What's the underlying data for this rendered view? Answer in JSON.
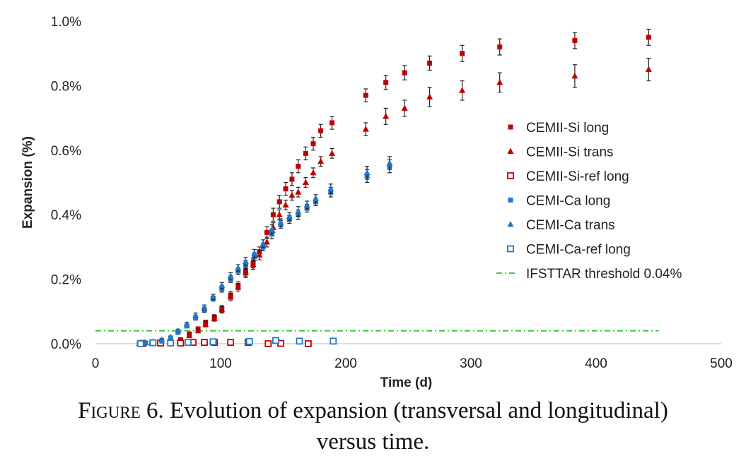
{
  "chart_data": {
    "type": "scatter",
    "xlabel": "Time (d)",
    "ylabel": "Expansion (%)",
    "xlim": [
      0,
      500
    ],
    "ylim": [
      0,
      1.0
    ],
    "x_ticks": [
      "0",
      "100",
      "200",
      "300",
      "400",
      "500"
    ],
    "y_ticks": [
      "0.0%",
      "0.2%",
      "0.4%",
      "0.6%",
      "0.8%",
      "1.0%"
    ],
    "grid": false,
    "legend_position": "right",
    "series": [
      {
        "name": "CEMII-Si long",
        "marker": "square-filled",
        "color": "#c00000",
        "x": [
          38,
          45,
          52,
          60,
          68,
          75,
          82,
          88,
          95,
          101,
          108,
          114,
          120,
          126,
          131,
          137,
          142,
          147,
          152,
          157,
          162,
          168,
          174,
          180,
          189,
          216,
          232,
          247,
          267,
          293,
          323,
          383,
          442
        ],
        "y": [
          0.0,
          0.002,
          0.003,
          0.006,
          0.012,
          0.03,
          0.046,
          0.065,
          0.082,
          0.108,
          0.15,
          0.18,
          0.225,
          0.25,
          0.285,
          0.345,
          0.4,
          0.44,
          0.48,
          0.51,
          0.55,
          0.59,
          0.62,
          0.66,
          0.685,
          0.77,
          0.81,
          0.84,
          0.87,
          0.9,
          0.92,
          0.94,
          0.95
        ],
        "err": [
          0.003,
          0.003,
          0.003,
          0.004,
          0.004,
          0.006,
          0.006,
          0.008,
          0.008,
          0.01,
          0.012,
          0.012,
          0.015,
          0.015,
          0.015,
          0.018,
          0.02,
          0.02,
          0.02,
          0.02,
          0.02,
          0.02,
          0.02,
          0.02,
          0.02,
          0.02,
          0.022,
          0.022,
          0.022,
          0.025,
          0.025,
          0.025,
          0.025
        ]
      },
      {
        "name": "CEMII-Si trans",
        "marker": "triangle-filled",
        "color": "#c00000",
        "x": [
          38,
          45,
          52,
          60,
          68,
          75,
          82,
          88,
          95,
          101,
          108,
          114,
          120,
          126,
          131,
          137,
          142,
          147,
          152,
          157,
          162,
          168,
          174,
          180,
          189,
          216,
          232,
          247,
          267,
          293,
          323,
          383,
          442
        ],
        "y": [
          0.0,
          0.002,
          0.003,
          0.005,
          0.01,
          0.025,
          0.04,
          0.06,
          0.078,
          0.105,
          0.145,
          0.175,
          0.22,
          0.245,
          0.275,
          0.315,
          0.36,
          0.4,
          0.43,
          0.46,
          0.47,
          0.5,
          0.53,
          0.565,
          0.59,
          0.665,
          0.705,
          0.73,
          0.765,
          0.785,
          0.81,
          0.83,
          0.85
        ],
        "err": [
          0.003,
          0.003,
          0.003,
          0.004,
          0.004,
          0.006,
          0.006,
          0.008,
          0.008,
          0.01,
          0.012,
          0.012,
          0.015,
          0.015,
          0.015,
          0.015,
          0.015,
          0.015,
          0.015,
          0.015,
          0.015,
          0.015,
          0.015,
          0.015,
          0.015,
          0.02,
          0.025,
          0.025,
          0.03,
          0.03,
          0.03,
          0.035,
          0.035
        ]
      },
      {
        "name": "CEMII-Si-ref long",
        "marker": "square-open",
        "color": "#c00000",
        "x": [
          38,
          52,
          68,
          78,
          87,
          95,
          108,
          122,
          138,
          148,
          170
        ],
        "y": [
          0.001,
          0.002,
          0.002,
          0.004,
          0.004,
          0.004,
          0.004,
          0.004,
          0.0,
          0.001,
          0.0
        ],
        "err": [
          0,
          0,
          0,
          0,
          0,
          0,
          0,
          0,
          0,
          0,
          0
        ]
      },
      {
        "name": "CEMI-Ca long",
        "marker": "square-filled",
        "color": "#1f78c8",
        "x": [
          35,
          40,
          46,
          53,
          60,
          66,
          73,
          80,
          87,
          94,
          101,
          108,
          114,
          120,
          127,
          134,
          141,
          148,
          155,
          162,
          169,
          176,
          188,
          217,
          235
        ],
        "y": [
          0.0,
          0.002,
          0.004,
          0.008,
          0.015,
          0.035,
          0.055,
          0.08,
          0.105,
          0.14,
          0.17,
          0.2,
          0.225,
          0.245,
          0.27,
          0.3,
          0.34,
          0.37,
          0.385,
          0.4,
          0.42,
          0.44,
          0.47,
          0.52,
          0.55
        ],
        "err": [
          0.003,
          0.003,
          0.003,
          0.004,
          0.004,
          0.005,
          0.006,
          0.007,
          0.008,
          0.008,
          0.01,
          0.01,
          0.01,
          0.012,
          0.012,
          0.012,
          0.015,
          0.012,
          0.012,
          0.015,
          0.012,
          0.012,
          0.015,
          0.02,
          0.02
        ]
      },
      {
        "name": "CEMI-Ca trans",
        "marker": "triangle-filled",
        "color": "#1f78c8",
        "x": [
          35,
          40,
          46,
          53,
          60,
          66,
          73,
          80,
          87,
          94,
          101,
          108,
          114,
          120,
          127,
          134,
          141,
          148,
          155,
          162,
          169,
          176,
          188,
          217,
          235
        ],
        "y": [
          0.001,
          0.003,
          0.006,
          0.012,
          0.02,
          0.04,
          0.06,
          0.088,
          0.112,
          0.145,
          0.18,
          0.21,
          0.235,
          0.255,
          0.28,
          0.31,
          0.355,
          0.375,
          0.395,
          0.41,
          0.43,
          0.45,
          0.48,
          0.53,
          0.56
        ],
        "err": [
          0.003,
          0.003,
          0.003,
          0.004,
          0.004,
          0.005,
          0.006,
          0.007,
          0.008,
          0.008,
          0.01,
          0.01,
          0.01,
          0.012,
          0.012,
          0.012,
          0.015,
          0.012,
          0.012,
          0.015,
          0.012,
          0.012,
          0.015,
          0.02,
          0.02
        ]
      },
      {
        "name": "CEMI-Ca-ref long",
        "marker": "square-open",
        "color": "#1f78c8",
        "x": [
          36,
          46,
          60,
          74,
          94,
          123,
          144,
          163,
          190
        ],
        "y": [
          0.0,
          0.003,
          0.002,
          0.004,
          0.006,
          0.007,
          0.01,
          0.008,
          0.008
        ],
        "err": [
          0,
          0,
          0,
          0,
          0,
          0,
          0,
          0,
          0
        ]
      },
      {
        "name": "IFSTTAR threshold 0.04%",
        "marker": "line-dashdot",
        "color": "#2fbf2f",
        "x": [
          0,
          450
        ],
        "y": [
          0.04,
          0.04
        ]
      }
    ]
  },
  "caption": {
    "figure_label": "Figure",
    "figure_number": "6.",
    "text_line1": "Evolution of expansion (transversal and longitudinal)",
    "text_line2": "versus time."
  }
}
